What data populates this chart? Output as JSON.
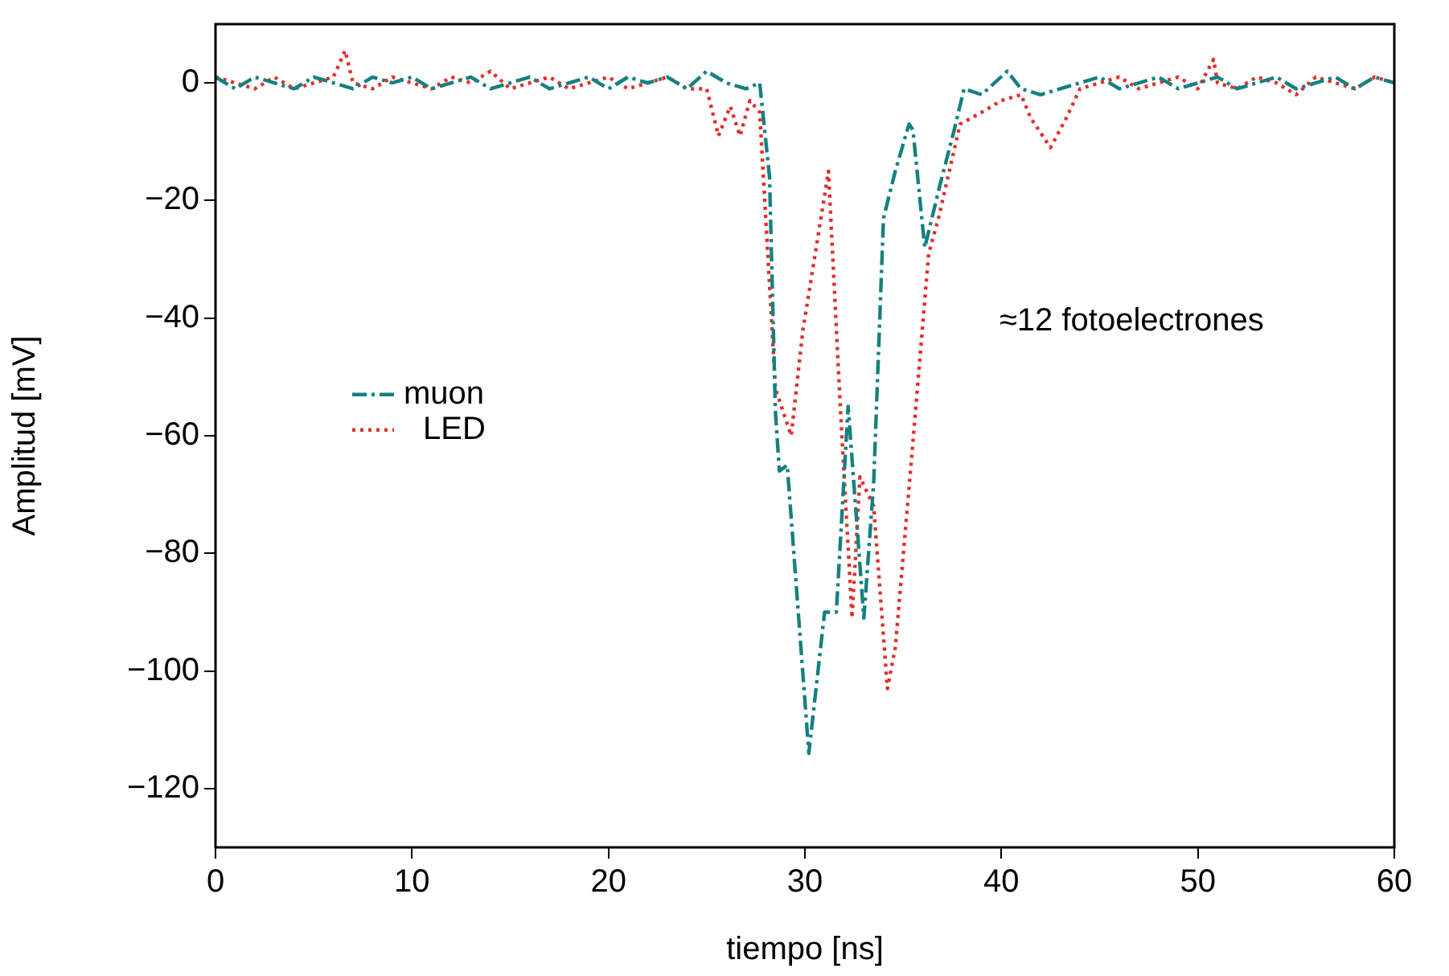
{
  "chart_data": {
    "type": "line",
    "xlabel": "tiempo [ns]",
    "ylabel": "Amplitud [mV]",
    "xlim": [
      0,
      60
    ],
    "xticks": [
      0,
      10,
      20,
      30,
      40,
      50,
      60
    ],
    "ylim": [
      -130,
      10
    ],
    "yticks": [
      0,
      -20,
      -40,
      -60,
      -80,
      -100,
      -120
    ],
    "grid": false,
    "legend": "left",
    "marker": "none",
    "annotations": [
      "≈12 fotoelectrones"
    ],
    "series": [
      {
        "name": "muon",
        "color": "#158080",
        "line_style": "dashed",
        "x": [
          0,
          1,
          2,
          3,
          4,
          5,
          6,
          7,
          8,
          9,
          10,
          11,
          12,
          13,
          14,
          15,
          16,
          17,
          18,
          19,
          20,
          21,
          22,
          23,
          24,
          25,
          26,
          27,
          27.7,
          28.2,
          28.5,
          28.7,
          29.1,
          30.2,
          31.0,
          31.6,
          32.2,
          33.0,
          33.5,
          34.0,
          34.6,
          35.3,
          35.5,
          36.1,
          36.9,
          37.6,
          38.1,
          39,
          40.3,
          41,
          42,
          43,
          44,
          45,
          46,
          47,
          48,
          49,
          50,
          51,
          52,
          53,
          54,
          55,
          56,
          57,
          58,
          59,
          60
        ],
        "values": [
          1,
          -1,
          1,
          0,
          -1,
          1,
          0,
          -1,
          1,
          0,
          1,
          -1,
          0,
          1,
          -1,
          0,
          1,
          -1,
          0,
          1,
          -1,
          1,
          0,
          1,
          -1,
          2,
          0,
          -1,
          0,
          -16,
          -56,
          -66,
          -65,
          -114,
          -90,
          -90,
          -55,
          -91,
          -68,
          -23,
          -15,
          -7,
          -8,
          -28,
          -17,
          -8,
          -1,
          -2,
          2,
          -1,
          -2,
          -1,
          0,
          1,
          -1,
          0,
          1,
          -1,
          0,
          1,
          -1,
          0,
          1,
          -1,
          0,
          1,
          -1,
          1,
          0
        ]
      },
      {
        "name": "LED",
        "color": "#e0302a",
        "line_style": "dotted",
        "x": [
          0,
          1,
          2,
          3,
          4,
          5,
          6,
          6.6,
          7,
          8,
          9,
          10,
          11,
          12,
          13,
          14,
          15,
          16,
          17,
          18,
          19,
          20,
          21,
          22,
          23,
          24,
          25,
          25.6,
          26.2,
          26.7,
          27.2,
          27.7,
          28.5,
          29.3,
          29.9,
          31.2,
          31.8,
          32.4,
          32.8,
          33.5,
          34.2,
          34.6,
          35.4,
          36.3,
          36.8,
          37.9,
          39,
          40,
          41,
          41.5,
          42.5,
          43.3,
          44,
          45,
          46,
          47,
          48,
          49,
          50,
          50.8,
          51,
          52,
          53,
          54,
          55,
          56,
          57,
          58,
          59,
          60
        ],
        "values": [
          1,
          0,
          -1,
          1,
          -1,
          0,
          1,
          5.5,
          0,
          -1,
          1,
          0,
          -1,
          1,
          0,
          2,
          -1,
          0,
          1,
          -1,
          0,
          1,
          -1,
          0,
          1,
          -1,
          -1,
          -9,
          -4,
          -9,
          -3,
          -5,
          -52,
          -60,
          -42,
          -15,
          -55,
          -91,
          -67,
          -72,
          -103,
          -96,
          -65,
          -29,
          -23,
          -7,
          -5,
          -3,
          -2,
          -6,
          -11,
          -6,
          -1,
          0,
          1,
          -1,
          0,
          1,
          -1,
          4,
          0,
          -1,
          1,
          0,
          -2,
          1,
          0,
          -1,
          1,
          0
        ]
      }
    ]
  }
}
